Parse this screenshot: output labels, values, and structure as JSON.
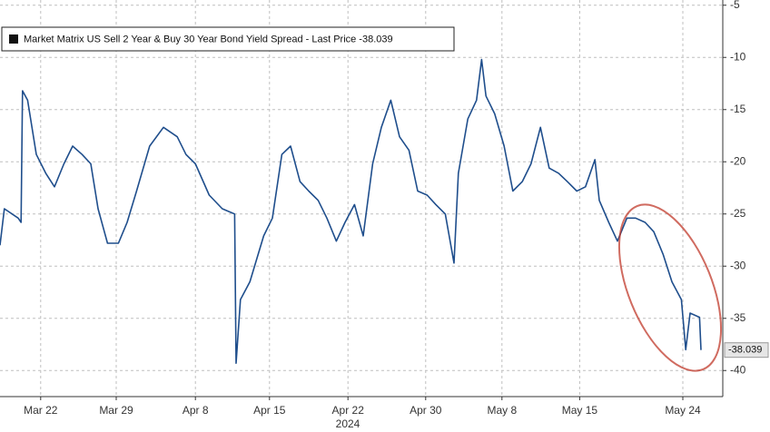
{
  "chart_data": {
    "type": "line",
    "xlabel": "2024",
    "x": [
      0,
      0.6,
      2.5,
      2.9,
      3.1,
      3.8,
      5,
      6.3,
      7.5,
      8.8,
      10,
      11.3,
      12.5,
      13.5,
      14.8,
      16.3,
      17.5,
      18.8,
      20.6,
      22.5,
      24.4,
      25.6,
      26.9,
      28.8,
      30.6,
      32.3,
      32.5,
      33.1,
      34.4,
      36.3,
      37.5,
      38.8,
      40,
      41.3,
      42.5,
      43.8,
      45,
      46.3,
      47.5,
      48.8,
      50,
      51.3,
      52.5,
      53.8,
      55,
      56.3,
      57.5,
      58.8,
      60,
      61.3,
      62.5,
      63.1,
      64.4,
      65.6,
      66.3,
      66.9,
      68.1,
      69.4,
      70.6,
      71.9,
      73.1,
      74.4,
      75.6,
      76.9,
      78.1,
      79.4,
      80.6,
      81.9,
      82.5,
      83.8,
      85,
      86.3,
      87.5,
      88.8,
      90,
      91.3,
      92.5,
      93.8,
      94.4,
      95,
      96.3,
      96.5
    ],
    "series": [
      {
        "name": "Market Matrix US Sell 2 Year & Buy 30 Year Bond Yield Spread - Last Price -38.039",
        "color": "#1f4e8c",
        "values": [
          -28.0,
          -24.5,
          -25.4,
          -25.8,
          -13.2,
          -14.1,
          -19.3,
          -21.1,
          -22.4,
          -20.2,
          -18.5,
          -19.3,
          -20.2,
          -24.5,
          -27.8,
          -27.8,
          -25.8,
          -22.8,
          -18.5,
          -16.7,
          -17.6,
          -19.3,
          -20.2,
          -23.2,
          -24.5,
          -25.0,
          -39.3,
          -33.2,
          -31.5,
          -27.1,
          -25.4,
          -19.3,
          -18.5,
          -21.9,
          -22.8,
          -23.7,
          -25.4,
          -27.6,
          -25.8,
          -24.1,
          -27.1,
          -20.2,
          -16.7,
          -14.1,
          -17.6,
          -18.9,
          -22.8,
          -23.2,
          -24.1,
          -25.0,
          -29.7,
          -21.1,
          -15.9,
          -14.1,
          -10.2,
          -13.7,
          -15.4,
          -18.5,
          -22.8,
          -21.9,
          -20.2,
          -16.7,
          -20.6,
          -21.1,
          -21.9,
          -22.8,
          -22.4,
          -19.8,
          -23.7,
          -25.8,
          -27.6,
          -25.4,
          -25.4,
          -25.8,
          -26.7,
          -28.9,
          -31.5,
          -33.2,
          -38.0,
          -34.5,
          -34.9,
          -38.039
        ]
      }
    ],
    "xlim": [
      0,
      99.5
    ],
    "xticks": [
      {
        "value": 5.6,
        "label": "Mar 22"
      },
      {
        "value": 16,
        "label": "Mar 29"
      },
      {
        "value": 26.9,
        "label": "Apr 8"
      },
      {
        "value": 37.1,
        "label": "Apr 15"
      },
      {
        "value": 47.9,
        "label": "Apr 22"
      },
      {
        "value": 58.6,
        "label": "Apr 30"
      },
      {
        "value": 69.1,
        "label": "May 8"
      },
      {
        "value": 79.8,
        "label": "May 15"
      },
      {
        "value": 94,
        "label": "May 24"
      }
    ],
    "ylim": [
      -42.5,
      -4.5
    ],
    "yticks": [
      -5,
      -10,
      -15,
      -20,
      -25,
      -30,
      -35,
      -40
    ],
    "grid": true
  }
}
